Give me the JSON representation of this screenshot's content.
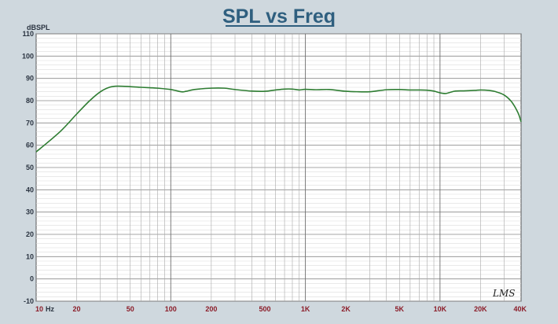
{
  "chart_data": {
    "type": "line",
    "title": "SPL vs Freq",
    "ylabel": "dBSPL",
    "xlabel": "",
    "x_scale": "log",
    "xlim": [
      10,
      40000
    ],
    "ylim": [
      -10,
      110
    ],
    "grid": true,
    "y_ticks": [
      "110",
      "100",
      "90",
      "80",
      "70",
      "60",
      "50",
      "40",
      "30",
      "20",
      "10",
      "0",
      "-10"
    ],
    "x_tick_labels": [
      {
        "value": 10,
        "label": "10"
      },
      {
        "value": 20,
        "label": "20"
      },
      {
        "value": 50,
        "label": "50"
      },
      {
        "value": 100,
        "label": "100"
      },
      {
        "value": 200,
        "label": "200"
      },
      {
        "value": 500,
        "label": "500"
      },
      {
        "value": 1000,
        "label": "1K"
      },
      {
        "value": 2000,
        "label": "2K"
      },
      {
        "value": 5000,
        "label": "5K"
      },
      {
        "value": 10000,
        "label": "10K"
      },
      {
        "value": 20000,
        "label": "20K"
      },
      {
        "value": 40000,
        "label": "40K"
      }
    ],
    "x_unit_label": "Hz",
    "series": [
      {
        "color": "#2e7d32",
        "points": [
          [
            10,
            57
          ],
          [
            15,
            66
          ],
          [
            20,
            74
          ],
          [
            25,
            80
          ],
          [
            30,
            84
          ],
          [
            35,
            86
          ],
          [
            40,
            86.5
          ],
          [
            50,
            86.3
          ],
          [
            60,
            86
          ],
          [
            70,
            85.8
          ],
          [
            80,
            85.6
          ],
          [
            100,
            85
          ],
          [
            120,
            84
          ],
          [
            130,
            84.2
          ],
          [
            150,
            85
          ],
          [
            200,
            85.6
          ],
          [
            250,
            85.6
          ],
          [
            300,
            85
          ],
          [
            400,
            84.3
          ],
          [
            500,
            84.2
          ],
          [
            600,
            84.8
          ],
          [
            700,
            85.2
          ],
          [
            800,
            85.2
          ],
          [
            900,
            84.8
          ],
          [
            1000,
            85.1
          ],
          [
            1200,
            84.9
          ],
          [
            1500,
            85
          ],
          [
            2000,
            84.2
          ],
          [
            2500,
            84
          ],
          [
            3000,
            84
          ],
          [
            4000,
            84.9
          ],
          [
            5000,
            85
          ],
          [
            6000,
            84.8
          ],
          [
            7000,
            84.8
          ],
          [
            8000,
            84.7
          ],
          [
            9000,
            84.3
          ],
          [
            10000,
            83.5
          ],
          [
            11000,
            83.2
          ],
          [
            12000,
            83.8
          ],
          [
            13000,
            84.3
          ],
          [
            15000,
            84.4
          ],
          [
            18000,
            84.6
          ],
          [
            20000,
            84.8
          ],
          [
            23000,
            84.6
          ],
          [
            26000,
            84
          ],
          [
            30000,
            82.5
          ],
          [
            34000,
            79.5
          ],
          [
            38000,
            74.5
          ],
          [
            40000,
            70.5
          ]
        ]
      }
    ]
  },
  "watermark": "LMS"
}
